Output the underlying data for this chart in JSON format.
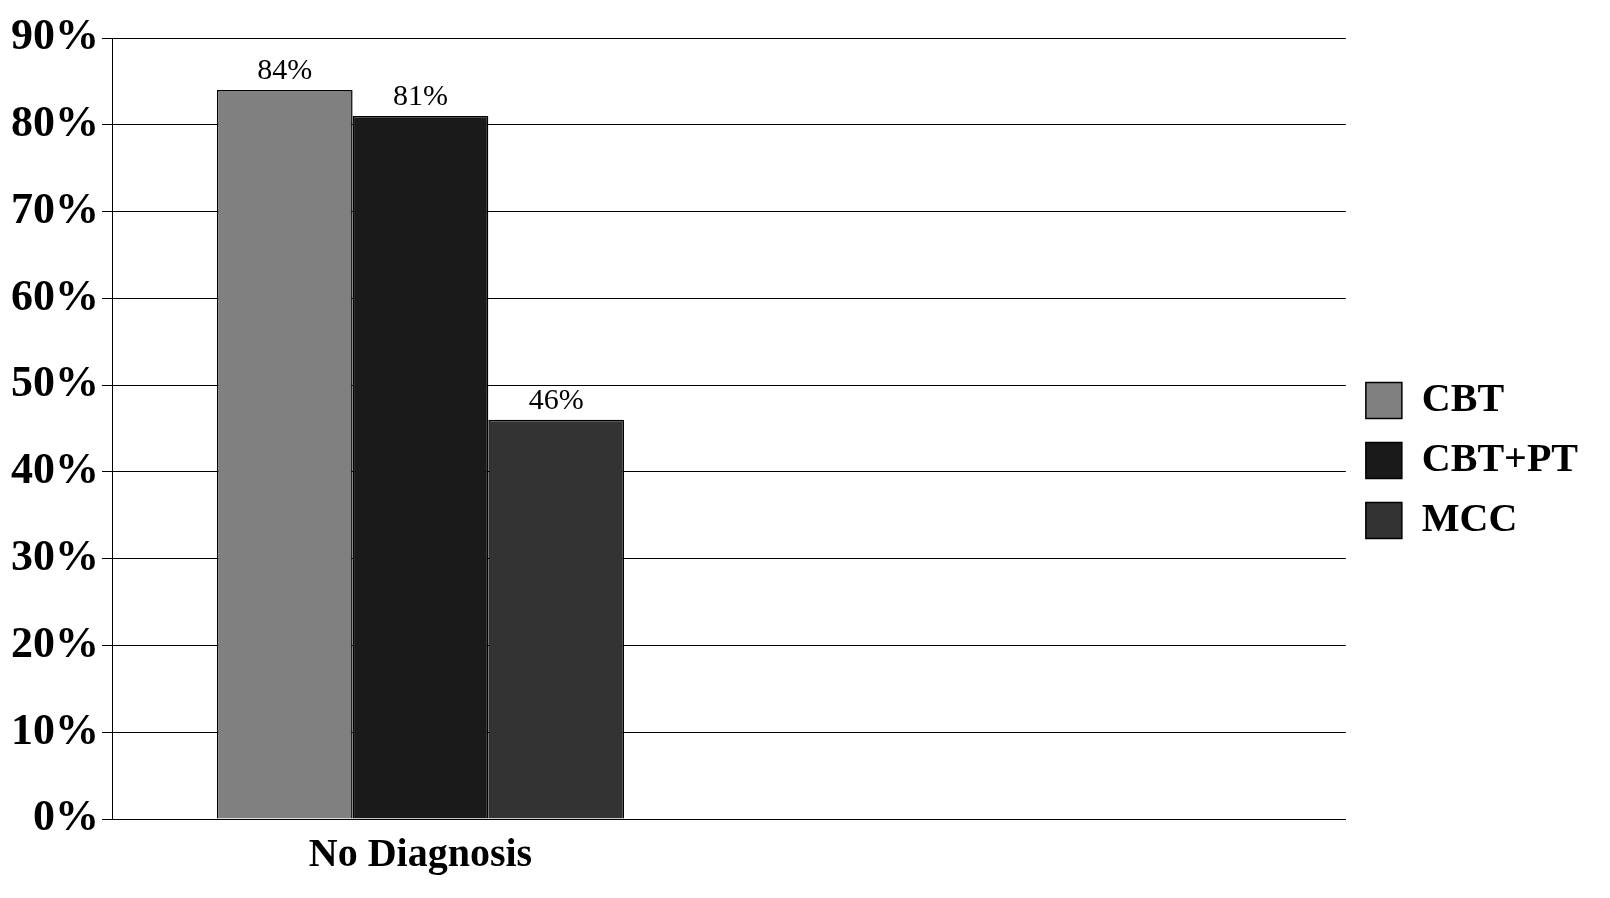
{
  "chart_data": {
    "type": "bar",
    "categories": [
      "No Diagnosis",
      null
    ],
    "series": [
      {
        "name": "CBT",
        "color": "#808080",
        "values": [
          84,
          null
        ],
        "value_labels": [
          "84%",
          null
        ]
      },
      {
        "name": "CBT+PT",
        "color": "#1a1a1a",
        "values": [
          81,
          null
        ],
        "value_labels": [
          "81%",
          null
        ]
      },
      {
        "name": "MCC",
        "color": "#333333",
        "values": [
          46,
          null
        ],
        "value_labels": [
          "46%",
          null
        ]
      }
    ],
    "ylim": [
      0,
      90
    ],
    "yticks": [
      {
        "value": 0,
        "label": "0%"
      },
      {
        "value": 10,
        "label": "10%"
      },
      {
        "value": 20,
        "label": "20%"
      },
      {
        "value": 30,
        "label": "30%"
      },
      {
        "value": 40,
        "label": "40%"
      },
      {
        "value": 50,
        "label": "50%"
      },
      {
        "value": 60,
        "label": "60%"
      },
      {
        "value": 70,
        "label": "70%"
      },
      {
        "value": 80,
        "label": "80%"
      },
      {
        "value": 90,
        "label": "90%"
      }
    ],
    "grid": "y",
    "legend": "right"
  }
}
